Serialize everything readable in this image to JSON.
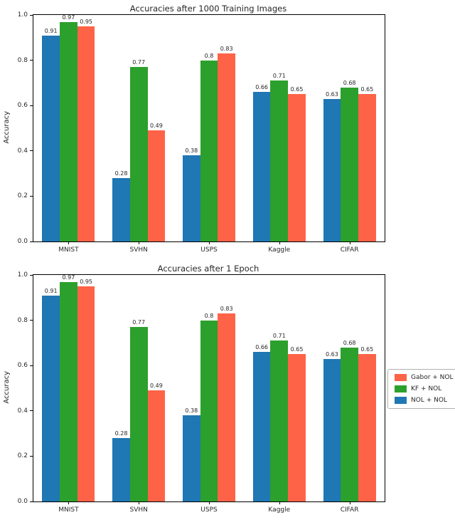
{
  "chart_data": [
    {
      "type": "bar",
      "title": "Accuracies after 1000 Training Images",
      "ylabel": "Accuracy",
      "xlabel": "",
      "ylim": [
        0.0,
        1.0
      ],
      "yticks": [
        "0.0",
        "0.2",
        "0.4",
        "0.6",
        "0.8",
        "1.0"
      ],
      "grid": false,
      "categories": [
        "MNIST",
        "SVHN",
        "USPS",
        "Kaggle",
        "CIFAR"
      ],
      "series": [
        {
          "name": "NOL + NOL",
          "color": "#1f77b4",
          "values": [
            0.91,
            0.28,
            0.38,
            0.66,
            0.63
          ]
        },
        {
          "name": "KF + NOL",
          "color": "#2ca02c",
          "values": [
            0.97,
            0.77,
            0.8,
            0.71,
            0.68
          ]
        },
        {
          "name": "Gabor + NOL",
          "color": "#ff6347",
          "values": [
            0.95,
            0.49,
            0.83,
            0.65,
            0.65
          ]
        }
      ],
      "legend": null
    },
    {
      "type": "bar",
      "title": "Accuracies after 1 Epoch",
      "ylabel": "Accuracy",
      "xlabel": "",
      "ylim": [
        0.0,
        1.0
      ],
      "yticks": [
        "0.0",
        "0.2",
        "0.4",
        "0.6",
        "0.8",
        "1.0"
      ],
      "grid": false,
      "categories": [
        "MNIST",
        "SVHN",
        "USPS",
        "Kaggle",
        "CIFAR"
      ],
      "series": [
        {
          "name": "NOL + NOL",
          "color": "#1f77b4",
          "values": [
            0.91,
            0.28,
            0.38,
            0.66,
            0.63
          ]
        },
        {
          "name": "KF + NOL",
          "color": "#2ca02c",
          "values": [
            0.97,
            0.77,
            0.8,
            0.71,
            0.68
          ]
        },
        {
          "name": "Gabor + NOL",
          "color": "#ff6347",
          "values": [
            0.95,
            0.49,
            0.83,
            0.65,
            0.65
          ]
        }
      ],
      "legend": {
        "position": "center right",
        "entries": [
          {
            "label": "Gabor + NOL",
            "color": "#ff6347"
          },
          {
            "label": "KF + NOL",
            "color": "#2ca02c"
          },
          {
            "label": "NOL + NOL",
            "color": "#1f77b4"
          }
        ]
      }
    }
  ]
}
